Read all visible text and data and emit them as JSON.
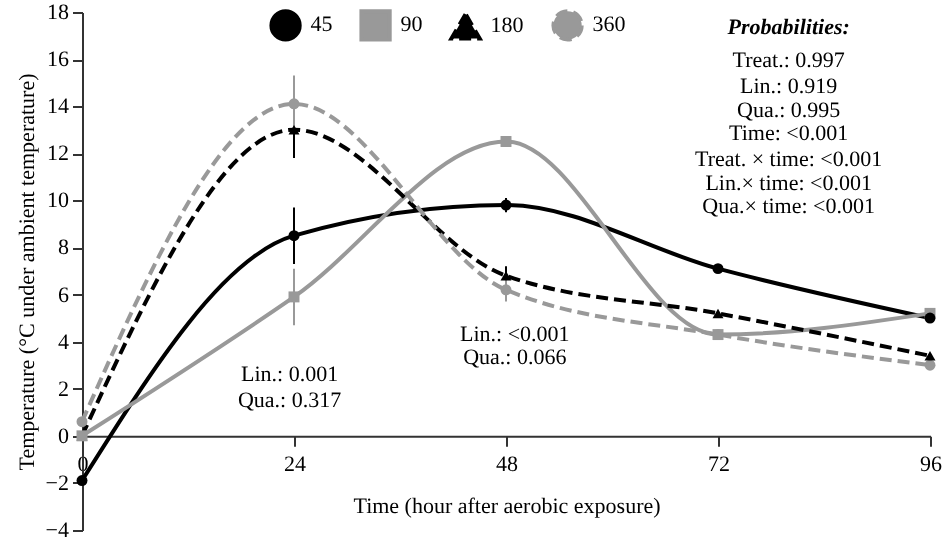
{
  "chart_data": {
    "type": "line",
    "xlabel": "Time (hour after aerobic exposure)",
    "ylabel": "Temperature (°C under ambient temperature)",
    "x": [
      0,
      24,
      48,
      72,
      96
    ],
    "xlim": [
      0,
      96
    ],
    "xticks": [
      0,
      24,
      48,
      72,
      96
    ],
    "ylim": [
      -4,
      18
    ],
    "yticks": [
      -4,
      -2,
      0,
      2,
      4,
      6,
      8,
      10,
      12,
      14,
      16,
      18
    ],
    "grid": false,
    "legend": "top",
    "series": [
      {
        "name": "45",
        "color": "#000000",
        "marker": "circle",
        "line_style": "solid",
        "values": [
          -1.9,
          8.5,
          9.8,
          7.1,
          5.0
        ],
        "errors": [
          null,
          1.2,
          0.3,
          null,
          null
        ]
      },
      {
        "name": "90",
        "color": "#999999",
        "marker": "square",
        "line_style": "solid",
        "values": [
          0,
          5.9,
          12.5,
          4.3,
          5.2
        ],
        "errors": [
          null,
          1.2,
          0.2,
          null,
          null
        ]
      },
      {
        "name": "180",
        "color": "#000000",
        "marker": "triangle",
        "line_style": "dashed",
        "values": [
          0,
          13.0,
          6.8,
          5.2,
          3.4
        ],
        "errors": [
          null,
          1.2,
          0.4,
          null,
          null
        ]
      },
      {
        "name": "360",
        "color": "#999999",
        "marker": "circle",
        "line_style": "dashed",
        "values": [
          0.6,
          14.1,
          6.2,
          4.3,
          3.0
        ],
        "errors": [
          null,
          1.2,
          0.5,
          null,
          null
        ]
      }
    ],
    "annotations": [
      "Probabilities:",
      "Treat.: 0.997",
      "Lin.: 0.919",
      "Qua.: 0.995",
      "Time: <0.001",
      "Treat. × time: <0.001",
      "Lin.× time: <0.001",
      "Qua.× time: <0.001",
      "Lin.: 0.001",
      "Qua.: 0.317",
      "Lin.: <0.001",
      "Qua.: 0.066"
    ]
  }
}
